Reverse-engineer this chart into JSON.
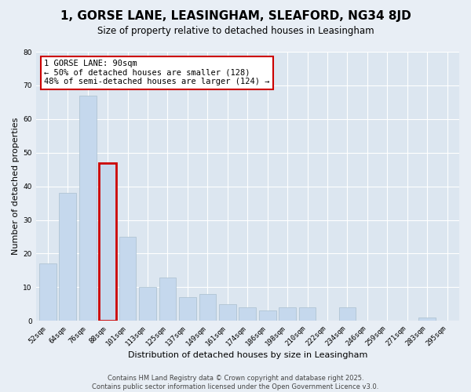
{
  "title": "1, GORSE LANE, LEASINGHAM, SLEAFORD, NG34 8JD",
  "subtitle": "Size of property relative to detached houses in Leasingham",
  "xlabel": "Distribution of detached houses by size in Leasingham",
  "ylabel": "Number of detached properties",
  "categories": [
    "52sqm",
    "64sqm",
    "76sqm",
    "88sqm",
    "101sqm",
    "113sqm",
    "125sqm",
    "137sqm",
    "149sqm",
    "161sqm",
    "174sqm",
    "186sqm",
    "198sqm",
    "210sqm",
    "222sqm",
    "234sqm",
    "246sqm",
    "259sqm",
    "271sqm",
    "283sqm",
    "295sqm"
  ],
  "values": [
    17,
    38,
    67,
    47,
    25,
    10,
    13,
    7,
    8,
    5,
    4,
    3,
    4,
    4,
    0,
    4,
    0,
    0,
    0,
    1,
    0
  ],
  "bar_color": "#c5d8ed",
  "bar_edgecolor": "#aabfce",
  "highlight_bar_index": 3,
  "highlight_bar_edgecolor": "#cc0000",
  "annotation_text": "1 GORSE LANE: 90sqm\n← 50% of detached houses are smaller (128)\n48% of semi-detached houses are larger (124) →",
  "annotation_box_edgecolor": "#cc0000",
  "annotation_box_facecolor": "white",
  "ylim": [
    0,
    80
  ],
  "yticks": [
    0,
    10,
    20,
    30,
    40,
    50,
    60,
    70,
    80
  ],
  "bg_color": "#e8eef5",
  "plot_bg_color": "#dce6f0",
  "footer_line1": "Contains HM Land Registry data © Crown copyright and database right 2025.",
  "footer_line2": "Contains public sector information licensed under the Open Government Licence v3.0.",
  "title_fontsize": 11,
  "subtitle_fontsize": 8.5,
  "axis_label_fontsize": 8,
  "tick_fontsize": 6.5,
  "annotation_fontsize": 7.5,
  "footer_fontsize": 6
}
